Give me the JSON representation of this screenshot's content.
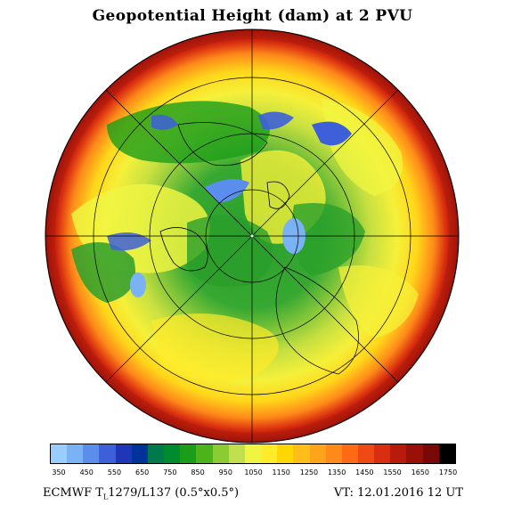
{
  "title": "Geopotential Height (dam) at 2 PVU",
  "colors": {
    "sequence": [
      "#99ccff",
      "#7ab3f5",
      "#5b8ded",
      "#3d5fd9",
      "#1f36b8",
      "#003399",
      "#007a4d",
      "#008c2e",
      "#1a9e1a",
      "#4db31a",
      "#8ccc33",
      "#c2e04d",
      "#f0f542",
      "#ffeb29",
      "#ffd700",
      "#ffbd1a",
      "#ffa31a",
      "#ff8a1a",
      "#ff6a14",
      "#f04a14",
      "#d92e10",
      "#b81a0c",
      "#991008",
      "#7a0806",
      "#000000"
    ],
    "ocean_pole": "#2e9e2e",
    "coast": "#000000"
  },
  "colorbar": {
    "labels": [
      "350",
      "450",
      "550",
      "650",
      "750",
      "850",
      "950",
      "1050",
      "1150",
      "1250",
      "1350",
      "1450",
      "1550",
      "1650",
      "1750"
    ]
  },
  "footer": {
    "left_prefix": "ECMWF T",
    "left_sub": "L",
    "left_suffix": "1279/L137 (0.5°x0.5°)",
    "right": "VT: 12.01.2016 12 UT"
  }
}
